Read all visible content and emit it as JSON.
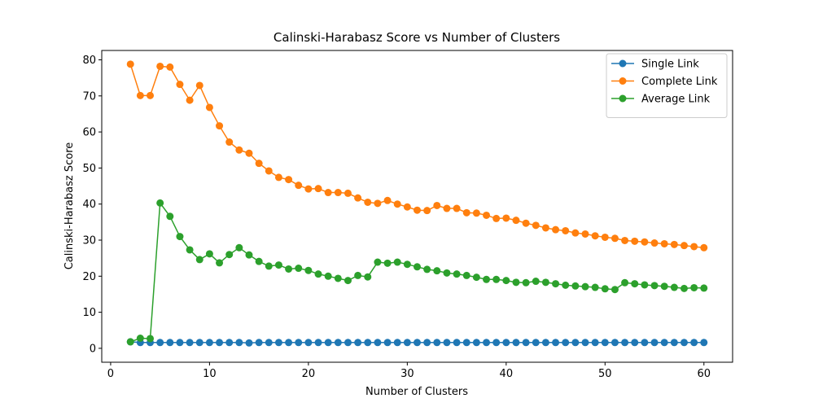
{
  "chart_data": {
    "type": "line",
    "title": "Calinski-Harabasz Score vs Number of Clusters",
    "xlabel": "Number of Clusters",
    "ylabel": "Calinski-Harabasz Score",
    "xlim": [
      -0.9,
      62.9
    ],
    "ylim": [
      -3.86,
      82.6
    ],
    "xticks": [
      0,
      10,
      20,
      30,
      40,
      50,
      60
    ],
    "yticks": [
      0,
      10,
      20,
      30,
      40,
      50,
      60,
      70,
      80
    ],
    "grid": false,
    "legend_position": "top-right",
    "x": [
      2,
      3,
      4,
      5,
      6,
      7,
      8,
      9,
      10,
      11,
      12,
      13,
      14,
      15,
      16,
      17,
      18,
      19,
      20,
      21,
      22,
      23,
      24,
      25,
      26,
      27,
      28,
      29,
      30,
      31,
      32,
      33,
      34,
      35,
      36,
      37,
      38,
      39,
      40,
      41,
      42,
      43,
      44,
      45,
      46,
      47,
      48,
      49,
      50,
      51,
      52,
      53,
      54,
      55,
      56,
      57,
      58,
      59,
      60
    ],
    "series": [
      {
        "name": "Single Link",
        "color": "#1f77b4",
        "values": [
          1.8,
          1.6,
          1.6,
          1.6,
          1.6,
          1.6,
          1.6,
          1.6,
          1.6,
          1.6,
          1.6,
          1.6,
          1.5,
          1.6,
          1.6,
          1.6,
          1.6,
          1.6,
          1.6,
          1.6,
          1.6,
          1.6,
          1.6,
          1.6,
          1.6,
          1.6,
          1.6,
          1.6,
          1.6,
          1.6,
          1.6,
          1.6,
          1.6,
          1.6,
          1.6,
          1.6,
          1.6,
          1.6,
          1.6,
          1.6,
          1.6,
          1.6,
          1.6,
          1.6,
          1.6,
          1.6,
          1.6,
          1.6,
          1.6,
          1.6,
          1.6,
          1.6,
          1.6,
          1.6,
          1.6,
          1.6,
          1.6,
          1.6,
          1.6
        ]
      },
      {
        "name": "Complete Link",
        "color": "#ff7f0e",
        "values": [
          78.8,
          70.1,
          70.1,
          78.2,
          78.0,
          73.2,
          68.8,
          72.9,
          66.8,
          61.7,
          57.2,
          55.0,
          54.1,
          51.3,
          49.2,
          47.4,
          46.8,
          45.2,
          44.2,
          44.3,
          43.2,
          43.2,
          43.0,
          41.7,
          40.5,
          40.2,
          41.0,
          40.0,
          39.2,
          38.3,
          38.2,
          39.6,
          38.8,
          38.8,
          37.6,
          37.5,
          36.9,
          36.0,
          36.1,
          35.5,
          34.7,
          34.1,
          33.4,
          32.9,
          32.6,
          32.0,
          31.7,
          31.2,
          30.8,
          30.5,
          29.9,
          29.7,
          29.5,
          29.2,
          29.0,
          28.8,
          28.5,
          28.2,
          27.9
        ]
      },
      {
        "name": "Average Link",
        "color": "#2ca02c",
        "values": [
          1.8,
          2.8,
          2.7,
          40.3,
          36.6,
          31.0,
          27.3,
          24.6,
          26.2,
          23.7,
          26.0,
          27.9,
          25.9,
          24.1,
          22.8,
          23.1,
          22.0,
          22.2,
          21.6,
          20.6,
          20.0,
          19.4,
          18.8,
          20.2,
          19.8,
          23.9,
          23.6,
          23.9,
          23.3,
          22.6,
          21.9,
          21.5,
          20.9,
          20.6,
          20.2,
          19.7,
          19.1,
          19.1,
          18.8,
          18.3,
          18.2,
          18.6,
          18.3,
          17.9,
          17.5,
          17.3,
          17.1,
          16.9,
          16.5,
          16.3,
          18.2,
          17.9,
          17.6,
          17.4,
          17.2,
          16.9,
          16.6,
          16.8,
          16.7
        ]
      }
    ]
  }
}
